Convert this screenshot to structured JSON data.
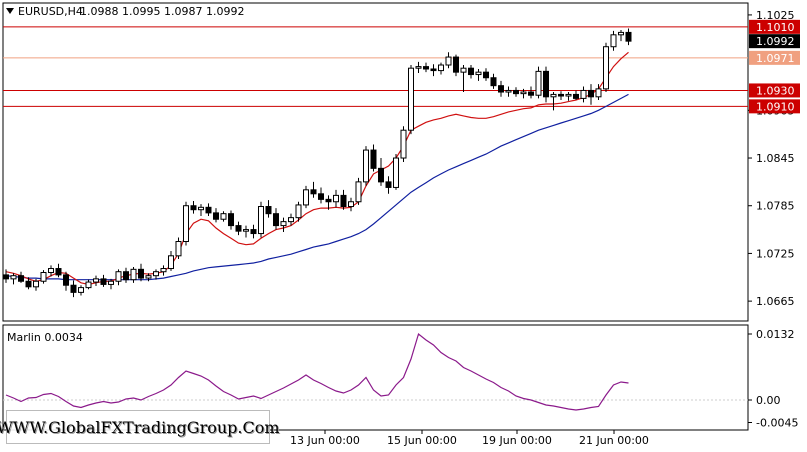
{
  "header": {
    "symbol": "EURUSD,H4",
    "ohlc": "1.0988 1.0995 1.0987 1.0992"
  },
  "watermark": "WWW.GlobalFXTradingGroup.Com",
  "colors": {
    "candle_up": "#ffffff",
    "candle_down": "#000000",
    "ma_fast": "#d01010",
    "ma_slow": "#1020a0",
    "marlin": "#8b1a8b",
    "level_line": "#cc0000",
    "level_light": "#f0a080",
    "current_price_bg": "#000000"
  },
  "chart_data": [
    {
      "type": "candlestick",
      "name": "price",
      "y_ticks": [
        "1.1025",
        "1.0905",
        "1.0845",
        "1.0785",
        "1.0725",
        "1.0665"
      ],
      "x_ticks": [
        "13 Jun 00:00",
        "15 Jun 00:00",
        "19 Jun 00:00",
        "21 Jun 00:00"
      ],
      "ylim": [
        1.064,
        1.104
      ],
      "levels": [
        {
          "label": "1.1010",
          "value": 1.101,
          "style": "red"
        },
        {
          "label": "1.0971",
          "value": 1.0971,
          "style": "light"
        },
        {
          "label": "1.0930",
          "value": 1.093,
          "style": "red"
        },
        {
          "label": "1.0910",
          "value": 1.091,
          "style": "red"
        }
      ],
      "current_price": {
        "label": "1.0992",
        "value": 1.0992
      },
      "candles": [
        [
          1.0698,
          1.0705,
          1.0688,
          1.0693
        ],
        [
          1.0693,
          1.07,
          1.0686,
          1.0697
        ],
        [
          1.0697,
          1.0702,
          1.0688,
          1.069
        ],
        [
          1.069,
          1.0695,
          1.068,
          1.0683
        ],
        [
          1.0683,
          1.0693,
          1.0678,
          1.069
        ],
        [
          1.069,
          1.0704,
          1.0687,
          1.0701
        ],
        [
          1.0701,
          1.071,
          1.0696,
          1.0706
        ],
        [
          1.0706,
          1.0712,
          1.0695,
          1.0698
        ],
        [
          1.0698,
          1.0702,
          1.0678,
          1.0685
        ],
        [
          1.0685,
          1.0691,
          1.067,
          1.0676
        ],
        [
          1.0676,
          1.0685,
          1.0672,
          1.0682
        ],
        [
          1.0682,
          1.0692,
          1.068,
          1.0689
        ],
        [
          1.0689,
          1.0697,
          1.0684,
          1.0693
        ],
        [
          1.0693,
          1.0698,
          1.0683,
          1.0686
        ],
        [
          1.0686,
          1.0693,
          1.068,
          1.069
        ],
        [
          1.069,
          1.0705,
          1.0685,
          1.0702
        ],
        [
          1.0702,
          1.0707,
          1.0688,
          1.0692
        ],
        [
          1.0692,
          1.0708,
          1.0688,
          1.0705
        ],
        [
          1.0705,
          1.0712,
          1.069,
          1.0694
        ],
        [
          1.0694,
          1.07,
          1.069,
          1.0697
        ],
        [
          1.0697,
          1.0705,
          1.0692,
          1.0702
        ],
        [
          1.0702,
          1.071,
          1.0697,
          1.0706
        ],
        [
          1.0706,
          1.0728,
          1.0703,
          1.0722
        ],
        [
          1.0722,
          1.0745,
          1.0718,
          1.074
        ],
        [
          1.074,
          1.079,
          1.0735,
          1.0785
        ],
        [
          1.0785,
          1.0791,
          1.0775,
          1.078
        ],
        [
          1.078,
          1.0787,
          1.0772,
          1.0783
        ],
        [
          1.0783,
          1.0788,
          1.0772,
          1.0776
        ],
        [
          1.0776,
          1.0782,
          1.0764,
          1.0768
        ],
        [
          1.0768,
          1.0778,
          1.0765,
          1.0775
        ],
        [
          1.0775,
          1.0779,
          1.0755,
          1.076
        ],
        [
          1.076,
          1.0765,
          1.0748,
          1.0753
        ],
        [
          1.0753,
          1.076,
          1.0745,
          1.0755
        ],
        [
          1.0755,
          1.0761,
          1.0744,
          1.075
        ],
        [
          1.075,
          1.079,
          1.0745,
          1.0784
        ],
        [
          1.0784,
          1.0792,
          1.077,
          1.0775
        ],
        [
          1.0775,
          1.0782,
          1.0755,
          1.076
        ],
        [
          1.076,
          1.077,
          1.0752,
          1.0765
        ],
        [
          1.0765,
          1.0775,
          1.076,
          1.077
        ],
        [
          1.077,
          1.079,
          1.0765,
          1.0786
        ],
        [
          1.0786,
          1.081,
          1.0782,
          1.0805
        ],
        [
          1.0805,
          1.0815,
          1.0795,
          1.08
        ],
        [
          1.08,
          1.0808,
          1.0788,
          1.0793
        ],
        [
          1.0793,
          1.0798,
          1.078,
          1.079
        ],
        [
          1.079,
          1.0805,
          1.0783,
          1.0798
        ],
        [
          1.0798,
          1.0805,
          1.078,
          1.0784
        ],
        [
          1.0784,
          1.0795,
          1.0778,
          1.079
        ],
        [
          1.079,
          1.082,
          1.0786,
          1.0815
        ],
        [
          1.0815,
          1.086,
          1.081,
          1.0855
        ],
        [
          1.0855,
          1.0862,
          1.0828,
          1.0832
        ],
        [
          1.0832,
          1.0845,
          1.081,
          1.0815
        ],
        [
          1.0815,
          1.0822,
          1.08,
          1.0808
        ],
        [
          1.0808,
          1.085,
          1.0805,
          1.0845
        ],
        [
          1.0845,
          1.0885,
          1.084,
          1.088
        ],
        [
          1.088,
          1.0962,
          1.0875,
          1.0958
        ],
        [
          1.0958,
          1.0966,
          1.0952,
          1.096
        ],
        [
          1.096,
          1.0965,
          1.0953,
          1.0957
        ],
        [
          1.0957,
          1.0963,
          1.0948,
          1.0955
        ],
        [
          1.0955,
          1.0965,
          1.095,
          1.0962
        ],
        [
          1.0962,
          1.0978,
          1.0958,
          1.0972
        ],
        [
          1.0972,
          1.0975,
          1.0948,
          1.0953
        ],
        [
          1.0953,
          1.0962,
          1.0928,
          1.0958
        ],
        [
          1.0958,
          1.0962,
          1.0945,
          1.095
        ],
        [
          1.095,
          1.0957,
          1.0942,
          1.0953
        ],
        [
          1.0953,
          1.0958,
          1.0942,
          1.0946
        ],
        [
          1.0946,
          1.0951,
          1.0932,
          1.0936
        ],
        [
          1.0936,
          1.0942,
          1.0922,
          1.0928
        ],
        [
          1.0928,
          1.0935,
          1.0922,
          1.093
        ],
        [
          1.093,
          1.0934,
          1.0922,
          1.0926
        ],
        [
          1.0926,
          1.0932,
          1.092,
          1.0928
        ],
        [
          1.0928,
          1.0935,
          1.092,
          1.0924
        ],
        [
          1.0924,
          1.096,
          1.092,
          1.0954
        ],
        [
          1.0954,
          1.096,
          1.0915,
          1.0922
        ],
        [
          1.0922,
          1.0928,
          1.0905,
          1.0925
        ],
        [
          1.0925,
          1.0929,
          1.0918,
          1.0923
        ],
        [
          1.0923,
          1.0928,
          1.0917,
          1.0925
        ],
        [
          1.0925,
          1.093,
          1.0918,
          1.092
        ],
        [
          1.092,
          1.0935,
          1.0915,
          1.093
        ],
        [
          1.093,
          1.0938,
          1.0912,
          1.0922
        ],
        [
          1.0922,
          1.0938,
          1.0918,
          1.0932
        ],
        [
          1.0932,
          1.099,
          1.0928,
          1.0985
        ],
        [
          1.0985,
          1.1005,
          1.098,
          1.1
        ],
        [
          1.1,
          1.1006,
          1.0992,
          1.1003
        ],
        [
          1.1003,
          1.1008,
          1.0987,
          1.0992
        ]
      ],
      "ma_fast": [
        1.0702,
        1.07,
        1.0697,
        1.0693,
        1.069,
        1.0692,
        1.0697,
        1.0701,
        1.07,
        1.0694,
        1.0688,
        1.0686,
        1.0688,
        1.069,
        1.069,
        1.0694,
        1.0697,
        1.0699,
        1.07,
        1.0699,
        1.07,
        1.0702,
        1.071,
        1.0725,
        1.075,
        1.0763,
        1.0768,
        1.0766,
        1.0757,
        1.075,
        1.0744,
        1.0738,
        1.0736,
        1.0737,
        1.0744,
        1.075,
        1.0755,
        1.0757,
        1.076,
        1.0767,
        1.0775,
        1.078,
        1.0782,
        1.0782,
        1.0783,
        1.0782,
        1.0783,
        1.079,
        1.081,
        1.0825,
        1.083,
        1.0835,
        1.0845,
        1.086,
        1.088,
        1.0885,
        1.089,
        1.0893,
        1.0895,
        1.0898,
        1.09,
        1.0898,
        1.0896,
        1.0895,
        1.0895,
        1.0897,
        1.09,
        1.0903,
        1.0905,
        1.0907,
        1.0908,
        1.0912,
        1.0913,
        1.0913,
        1.0914,
        1.0916,
        1.0918,
        1.0921,
        1.0925,
        1.0932,
        1.0946,
        1.096,
        1.097,
        1.0978
      ],
      "ma_slow": [
        1.0697,
        1.0696,
        1.0695,
        1.0694,
        1.0694,
        1.0693,
        1.0693,
        1.0693,
        1.0692,
        1.0692,
        1.0692,
        1.0692,
        1.0692,
        1.0692,
        1.0692,
        1.0692,
        1.0692,
        1.0692,
        1.0692,
        1.0692,
        1.0693,
        1.0694,
        1.0696,
        1.0698,
        1.07,
        1.0703,
        1.0705,
        1.0707,
        1.0708,
        1.0709,
        1.071,
        1.0711,
        1.0712,
        1.0713,
        1.0715,
        1.0718,
        1.072,
        1.0722,
        1.0724,
        1.0727,
        1.073,
        1.0733,
        1.0735,
        1.0737,
        1.074,
        1.0743,
        1.0746,
        1.075,
        1.0755,
        1.0762,
        1.077,
        1.0778,
        1.0786,
        1.0794,
        1.0802,
        1.0808,
        1.0814,
        1.082,
        1.0825,
        1.083,
        1.0834,
        1.0838,
        1.0842,
        1.0846,
        1.085,
        1.0855,
        1.086,
        1.0864,
        1.0868,
        1.0872,
        1.0876,
        1.088,
        1.0883,
        1.0886,
        1.0889,
        1.0892,
        1.0895,
        1.0898,
        1.0901,
        1.0905,
        1.091,
        1.0915,
        1.092,
        1.0925
      ]
    },
    {
      "type": "line",
      "name": "Marlin",
      "title": "Marlin 0.0034",
      "y_ticks": [
        "0.0132",
        "0.00",
        "-0.0045"
      ],
      "ylim": [
        -0.006,
        0.015
      ],
      "zero_line": 0.0,
      "values": [
        0.001,
        0.0004,
        -0.0003,
        0.0004,
        0.0005,
        0.0011,
        0.0013,
        0.0007,
        -0.0003,
        -0.0012,
        -0.0015,
        -0.001,
        -0.0006,
        -0.0003,
        -0.0006,
        -0.0004,
        0.0002,
        0.0004,
        0.0,
        0.0007,
        0.0013,
        0.002,
        0.003,
        0.0045,
        0.0058,
        0.0053,
        0.0048,
        0.004,
        0.0028,
        0.0017,
        0.001,
        0.0002,
        0.0005,
        0.0008,
        0.0003,
        0.001,
        0.0017,
        0.0024,
        0.0032,
        0.004,
        0.005,
        0.004,
        0.0033,
        0.0025,
        0.0018,
        0.0014,
        0.002,
        0.003,
        0.0045,
        0.002,
        0.0008,
        0.001,
        0.003,
        0.0045,
        0.0082,
        0.0132,
        0.012,
        0.011,
        0.0095,
        0.0085,
        0.0078,
        0.0065,
        0.0058,
        0.005,
        0.0042,
        0.0035,
        0.0025,
        0.0018,
        0.0008,
        0.0003,
        0.0,
        -0.0005,
        -0.001,
        -0.0012,
        -0.0015,
        -0.0018,
        -0.002,
        -0.0018,
        -0.0015,
        -0.0013,
        0.001,
        0.003,
        0.0036,
        0.0034
      ]
    }
  ]
}
